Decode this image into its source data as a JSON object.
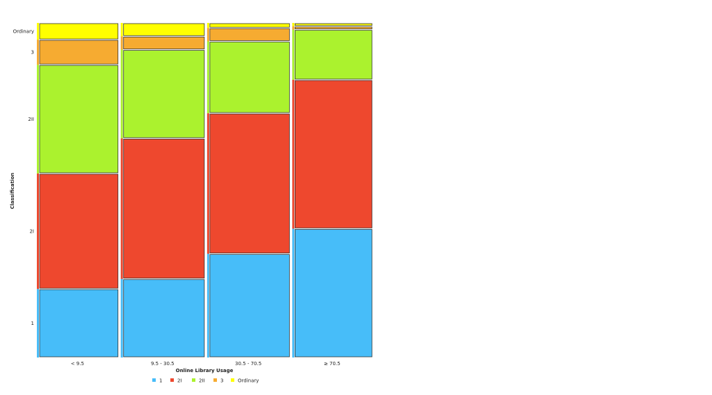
{
  "chart_data": {
    "type": "mosaic",
    "title": "",
    "xlabel": "Online Library Usage",
    "ylabel": "Classification",
    "categories": [
      "< 9.5",
      "9.5 - 30.5",
      "30.5 - 70.5",
      "≥ 70.5"
    ],
    "column_shares": [
      0.2483,
      0.2557,
      0.252,
      0.244
    ],
    "series": [
      {
        "name": "1",
        "color": "#47bdf9",
        "values": [
          0.205,
          0.235,
          0.31,
          0.385
        ]
      },
      {
        "name": "2I",
        "color": "#ee482e",
        "values": [
          0.345,
          0.42,
          0.42,
          0.445
        ]
      },
      {
        "name": "2II",
        "color": "#abf22e",
        "values": [
          0.325,
          0.265,
          0.215,
          0.15
        ]
      },
      {
        "name": "3",
        "color": "#f6ab31",
        "values": [
          0.075,
          0.04,
          0.04,
          0.01
        ]
      },
      {
        "name": "Ordinary",
        "color": "#ffff00",
        "values": [
          0.05,
          0.04,
          0.015,
          0.01
        ]
      }
    ],
    "y_tick_labels": [
      "1",
      "2I",
      "2II",
      "3",
      "Ordinary"
    ],
    "legend": {
      "position": "bottom-center",
      "entries": [
        "1",
        "2I",
        "2II",
        "3",
        "Ordinary"
      ]
    },
    "grid": false
  }
}
